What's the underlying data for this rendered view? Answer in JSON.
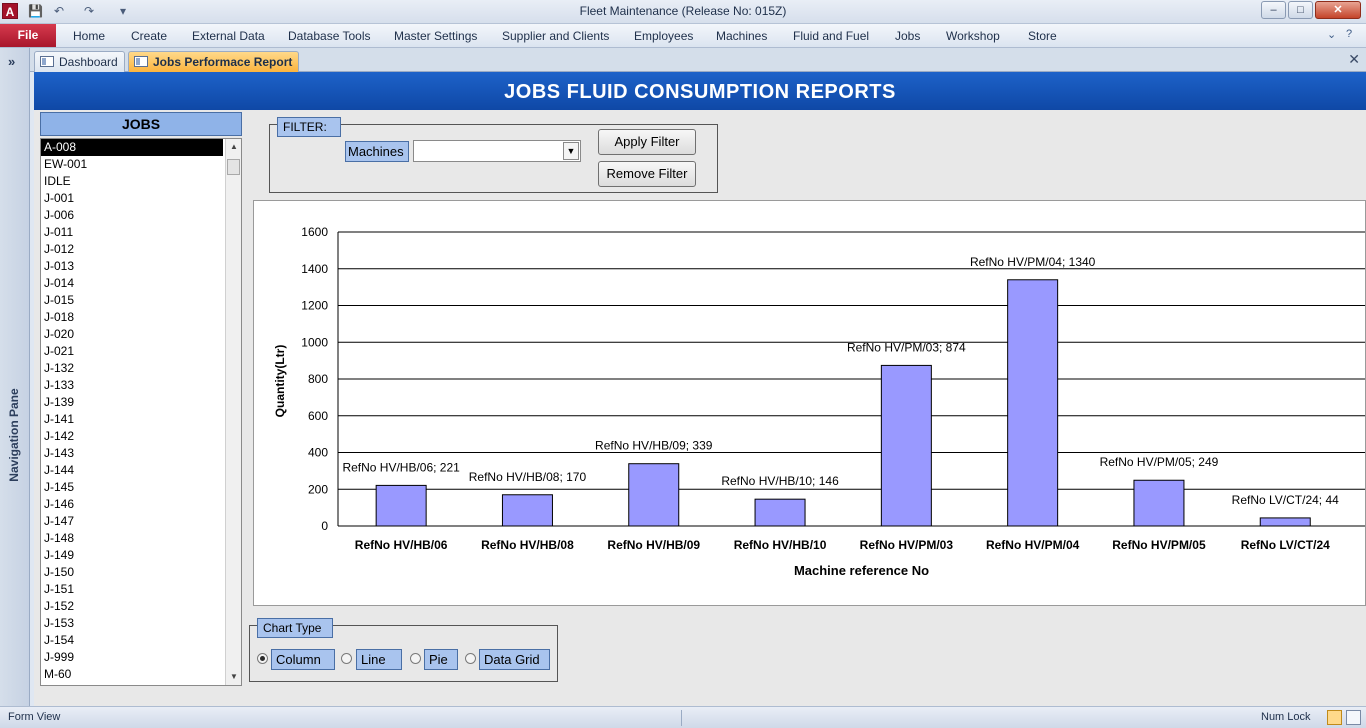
{
  "window": {
    "title": "Fleet Maintenance (Release No: 015Z)",
    "app_icon_letter": "A",
    "minimize": "–",
    "maximize": "□",
    "close": "✕"
  },
  "ribbon": {
    "file": "File",
    "tabs": [
      "Home",
      "Create",
      "External Data",
      "Database Tools",
      "Master Settings",
      "Supplier and Clients",
      "Employees",
      "Machines",
      "Fluid and Fuel",
      "Jobs",
      "Workshop",
      "Store"
    ],
    "help": "?"
  },
  "nav_pane": {
    "label": "Navigation Pane",
    "toggle": "»"
  },
  "doc_tabs": [
    {
      "label": "Dashboard",
      "active": false
    },
    {
      "label": "Jobs Performace Report",
      "active": true
    }
  ],
  "doc_close": "✕",
  "form": {
    "header": "JOBS FLUID CONSUMPTION REPORTS",
    "jobs_header": "JOBS",
    "jobs": [
      "A-008",
      "EW-001",
      "IDLE",
      "J-001",
      "J-006",
      "J-011",
      "J-012",
      "J-013",
      "J-014",
      "J-015",
      "J-018",
      "J-020",
      "J-021",
      "J-132",
      "J-133",
      "J-139",
      "J-141",
      "J-142",
      "J-143",
      "J-144",
      "J-145",
      "J-146",
      "J-147",
      "J-148",
      "J-149",
      "J-150",
      "J-151",
      "J-152",
      "J-153",
      "J-154",
      "J-999",
      "M-60"
    ],
    "selected_job": "A-008",
    "filter": {
      "label": "FILTER:",
      "machines_label": "Machines",
      "machines_value": "",
      "apply": "Apply Filter",
      "remove": "Remove Filter"
    },
    "chart_type": {
      "label": "Chart Type",
      "options": [
        "Column",
        "Line",
        "Pie",
        "Data Grid"
      ],
      "selected": "Column"
    }
  },
  "chart_data": {
    "type": "bar",
    "categories": [
      "RefNo HV/HB/06",
      "RefNo HV/HB/08",
      "RefNo HV/HB/09",
      "RefNo HV/HB/10",
      "RefNo HV/PM/03",
      "RefNo HV/PM/04",
      "RefNo HV/PM/05",
      "RefNo LV/CT/24"
    ],
    "values": [
      221,
      170,
      339,
      146,
      874,
      1340,
      249,
      44
    ],
    "data_labels": [
      "RefNo HV/HB/06; 221",
      "RefNo HV/HB/08; 170",
      "RefNo HV/HB/09; 339",
      "RefNo HV/HB/10; 146",
      "RefNo HV/PM/03; 874",
      "RefNo HV/PM/04; 1340",
      "RefNo HV/PM/05; 249",
      "RefNo LV/CT/24; 44"
    ],
    "xlabel": "Machine reference No",
    "ylabel": "Quantity(Ltr)",
    "ylim": [
      0,
      1600
    ],
    "yticks": [
      0,
      200,
      400,
      600,
      800,
      1000,
      1200,
      1400,
      1600
    ],
    "grid": true,
    "bar_color": "#9999ff"
  },
  "statusbar": {
    "left": "Form View",
    "right": "Num Lock"
  }
}
